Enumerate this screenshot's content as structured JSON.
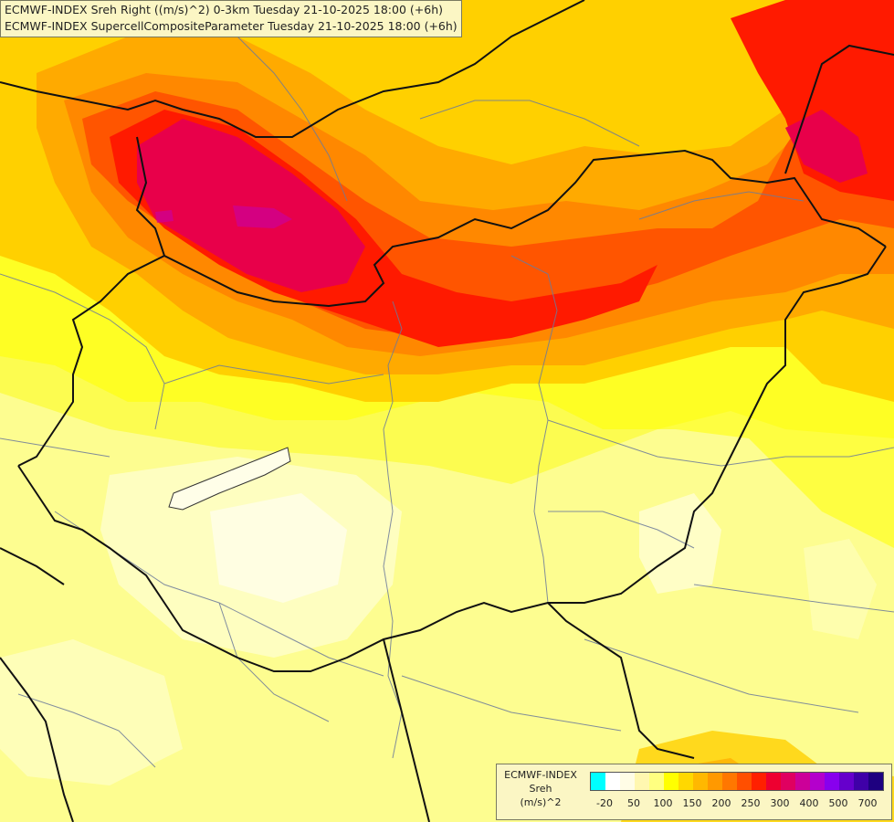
{
  "header": {
    "line1": "ECMWF-INDEX Sreh Right ((m/s)^2) 0-3km Tuesday 21-10-2025 18:00 (+6h)",
    "line2": "ECMWF-INDEX SupercellCompositeParameter Tuesday 21-10-2025 18:00 (+6h)"
  },
  "legend": {
    "source": "ECMWF-INDEX",
    "variable": "Sreh",
    "unit": "(m/s)^2",
    "colors": [
      "#00ffff",
      "#ffffff",
      "#fffde6",
      "#fff7b0",
      "#ffff80",
      "#ffff00",
      "#ffd800",
      "#ffb800",
      "#ff9900",
      "#ff7700",
      "#ff4f00",
      "#ff2000",
      "#ee0030",
      "#e00060",
      "#cc0099",
      "#b400cc",
      "#8800ee",
      "#6600cc",
      "#3f00a8",
      "#1e0080"
    ],
    "tick_labels": [
      "-20",
      "50",
      "100",
      "150",
      "200",
      "250",
      "300",
      "400",
      "500",
      "700"
    ]
  }
}
